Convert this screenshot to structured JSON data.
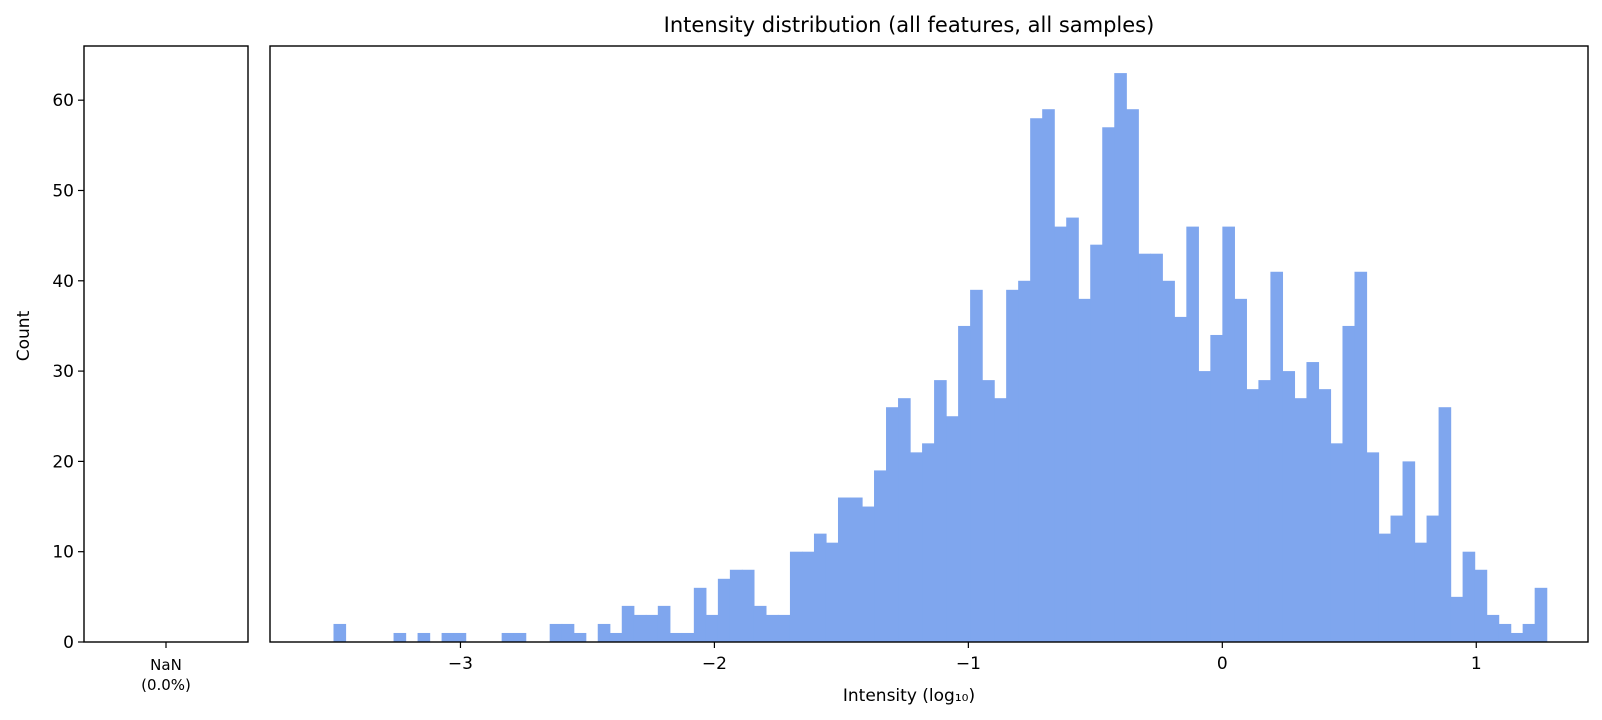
{
  "chart_data": [
    {
      "type": "bar",
      "panel": "nan",
      "categories": [
        "NaN\n(0.0%)"
      ],
      "values": [
        0
      ],
      "ylabel": "Count",
      "ylim": [
        0,
        66
      ],
      "yticks": [
        0,
        10,
        20,
        30,
        40,
        50,
        60
      ],
      "grid": false
    },
    {
      "type": "bar",
      "panel": "histogram",
      "title": "Intensity distribution (all features, all samples)",
      "xlabel": "Intensity (log₁₀)",
      "xlim": [
        -3.75,
        1.44
      ],
      "ylim": [
        0,
        66
      ],
      "xticks": [
        -3,
        -2,
        -1,
        0,
        1
      ],
      "xtick_labels": [
        "−3",
        "−2",
        "−1",
        "0",
        "1"
      ],
      "grid": false,
      "color": "#7fa6ee",
      "bin_start": -3.5,
      "bin_width": 0.0473,
      "counts": [
        2,
        0,
        0,
        0,
        0,
        1,
        0,
        1,
        0,
        1,
        1,
        0,
        0,
        0,
        1,
        1,
        0,
        0,
        2,
        2,
        1,
        0,
        2,
        1,
        4,
        3,
        3,
        4,
        1,
        1,
        6,
        3,
        7,
        8,
        8,
        4,
        3,
        3,
        10,
        10,
        12,
        11,
        16,
        16,
        15,
        19,
        26,
        27,
        21,
        22,
        29,
        25,
        35,
        39,
        29,
        27,
        39,
        40,
        58,
        59,
        46,
        47,
        38,
        44,
        57,
        63,
        59,
        43,
        43,
        40,
        36,
        46,
        30,
        34,
        46,
        38,
        28,
        29,
        41,
        30,
        27,
        31,
        28,
        22,
        35,
        41,
        21,
        12,
        14,
        20,
        11,
        14,
        26,
        5,
        10,
        8,
        3,
        2,
        1,
        2,
        6
      ]
    }
  ]
}
